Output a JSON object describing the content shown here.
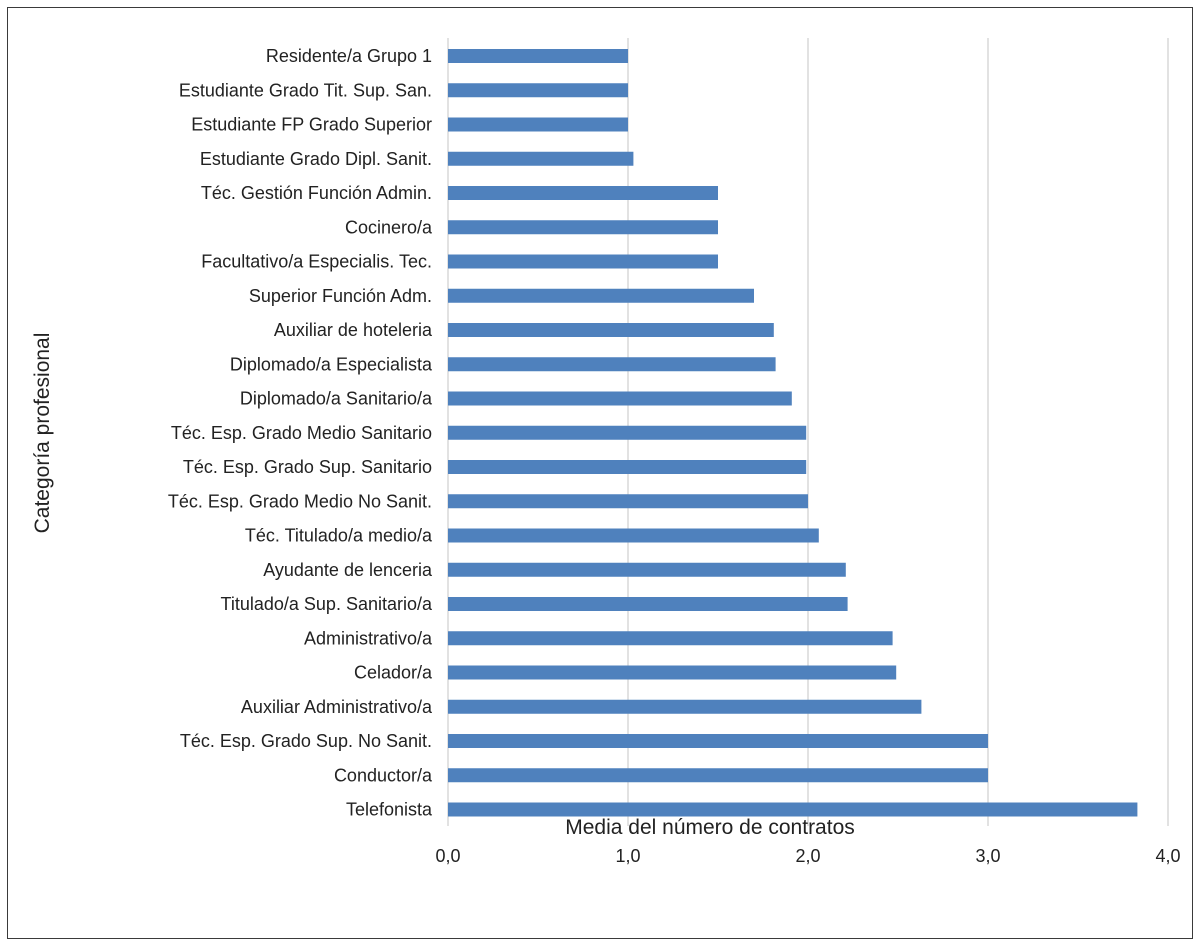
{
  "chart_data": {
    "type": "bar",
    "orientation": "horizontal",
    "categories": [
      "Residente/a Grupo 1",
      "Estudiante Grado Tit. Sup. San.",
      "Estudiante FP Grado Superior",
      "Estudiante Grado Dipl. Sanit.",
      "Téc. Gestión Función Admin.",
      "Cocinero/a",
      "Facultativo/a Especialis. Tec.",
      "Superior Función Adm.",
      "Auxiliar de hoteleria",
      "Diplomado/a Especialista",
      "Diplomado/a Sanitario/a",
      "Téc. Esp. Grado Medio Sanitario",
      "Téc. Esp. Grado Sup. Sanitario",
      "Téc. Esp. Grado Medio No Sanit.",
      "Téc. Titulado/a medio/a",
      "Ayudante de lenceria",
      "Titulado/a Sup. Sanitario/a",
      "Administrativo/a",
      "Celador/a",
      "Auxiliar Administrativo/a",
      "Téc. Esp. Grado Sup. No Sanit.",
      "Conductor/a",
      "Telefonista"
    ],
    "values": [
      1.0,
      1.0,
      1.0,
      1.03,
      1.5,
      1.5,
      1.5,
      1.7,
      1.81,
      1.82,
      1.91,
      1.99,
      1.99,
      2.0,
      2.06,
      2.21,
      2.22,
      2.47,
      2.49,
      2.63,
      3.0,
      3.0,
      3.83
    ],
    "title": "",
    "xlabel": "Media del número de contratos",
    "ylabel": "Categoría profesional",
    "xlim": [
      0,
      4
    ],
    "xticks": [
      "0,0",
      "1,0",
      "2,0",
      "3,0",
      "4,0"
    ],
    "grid": "vertical",
    "bar_color": "#4f81bd",
    "grid_color": "#d9d9d9"
  }
}
